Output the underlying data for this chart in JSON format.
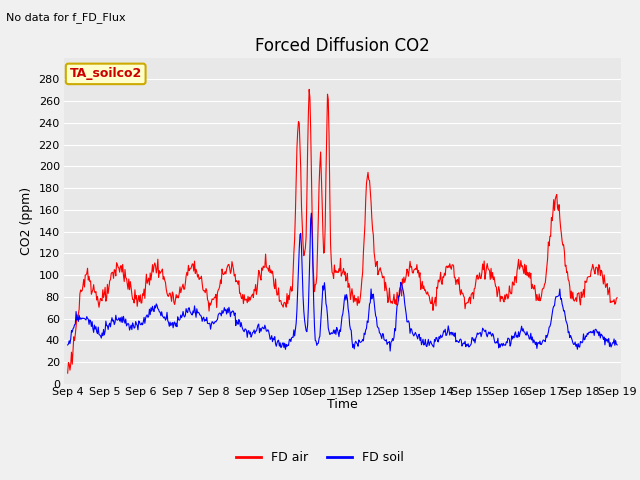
{
  "title": "Forced Diffusion CO2",
  "annotation_topleft": "No data for f_FD_Flux",
  "legend_box_label": "TA_soilco2",
  "ylabel": "CO2 (ppm)",
  "xlabel": "Time",
  "ylim": [
    0,
    300
  ],
  "yticks": [
    0,
    20,
    40,
    60,
    80,
    100,
    120,
    140,
    160,
    180,
    200,
    220,
    240,
    260,
    280
  ],
  "xtick_labels": [
    "Sep 4",
    "Sep 5",
    "Sep 6",
    "Sep 7",
    "Sep 8",
    "Sep 9",
    "Sep 10",
    "Sep 11",
    "Sep 12",
    "Sep 13",
    "Sep 14",
    "Sep 15",
    "Sep 16",
    "Sep 17",
    "Sep 18",
    "Sep 19"
  ],
  "fd_air_color": "#ff0000",
  "fd_soil_color": "#0000ff",
  "fig_bg_color": "#f0f0f0",
  "plot_bg_color": "#e8e8e8",
  "grid_color": "#ffffff",
  "legend_box_facecolor": "#ffffcc",
  "legend_box_edgecolor": "#ccaa00",
  "legend_box_text_color": "#cc0000",
  "title_fontsize": 12,
  "label_fontsize": 9,
  "tick_fontsize": 8,
  "annotation_fontsize": 8
}
